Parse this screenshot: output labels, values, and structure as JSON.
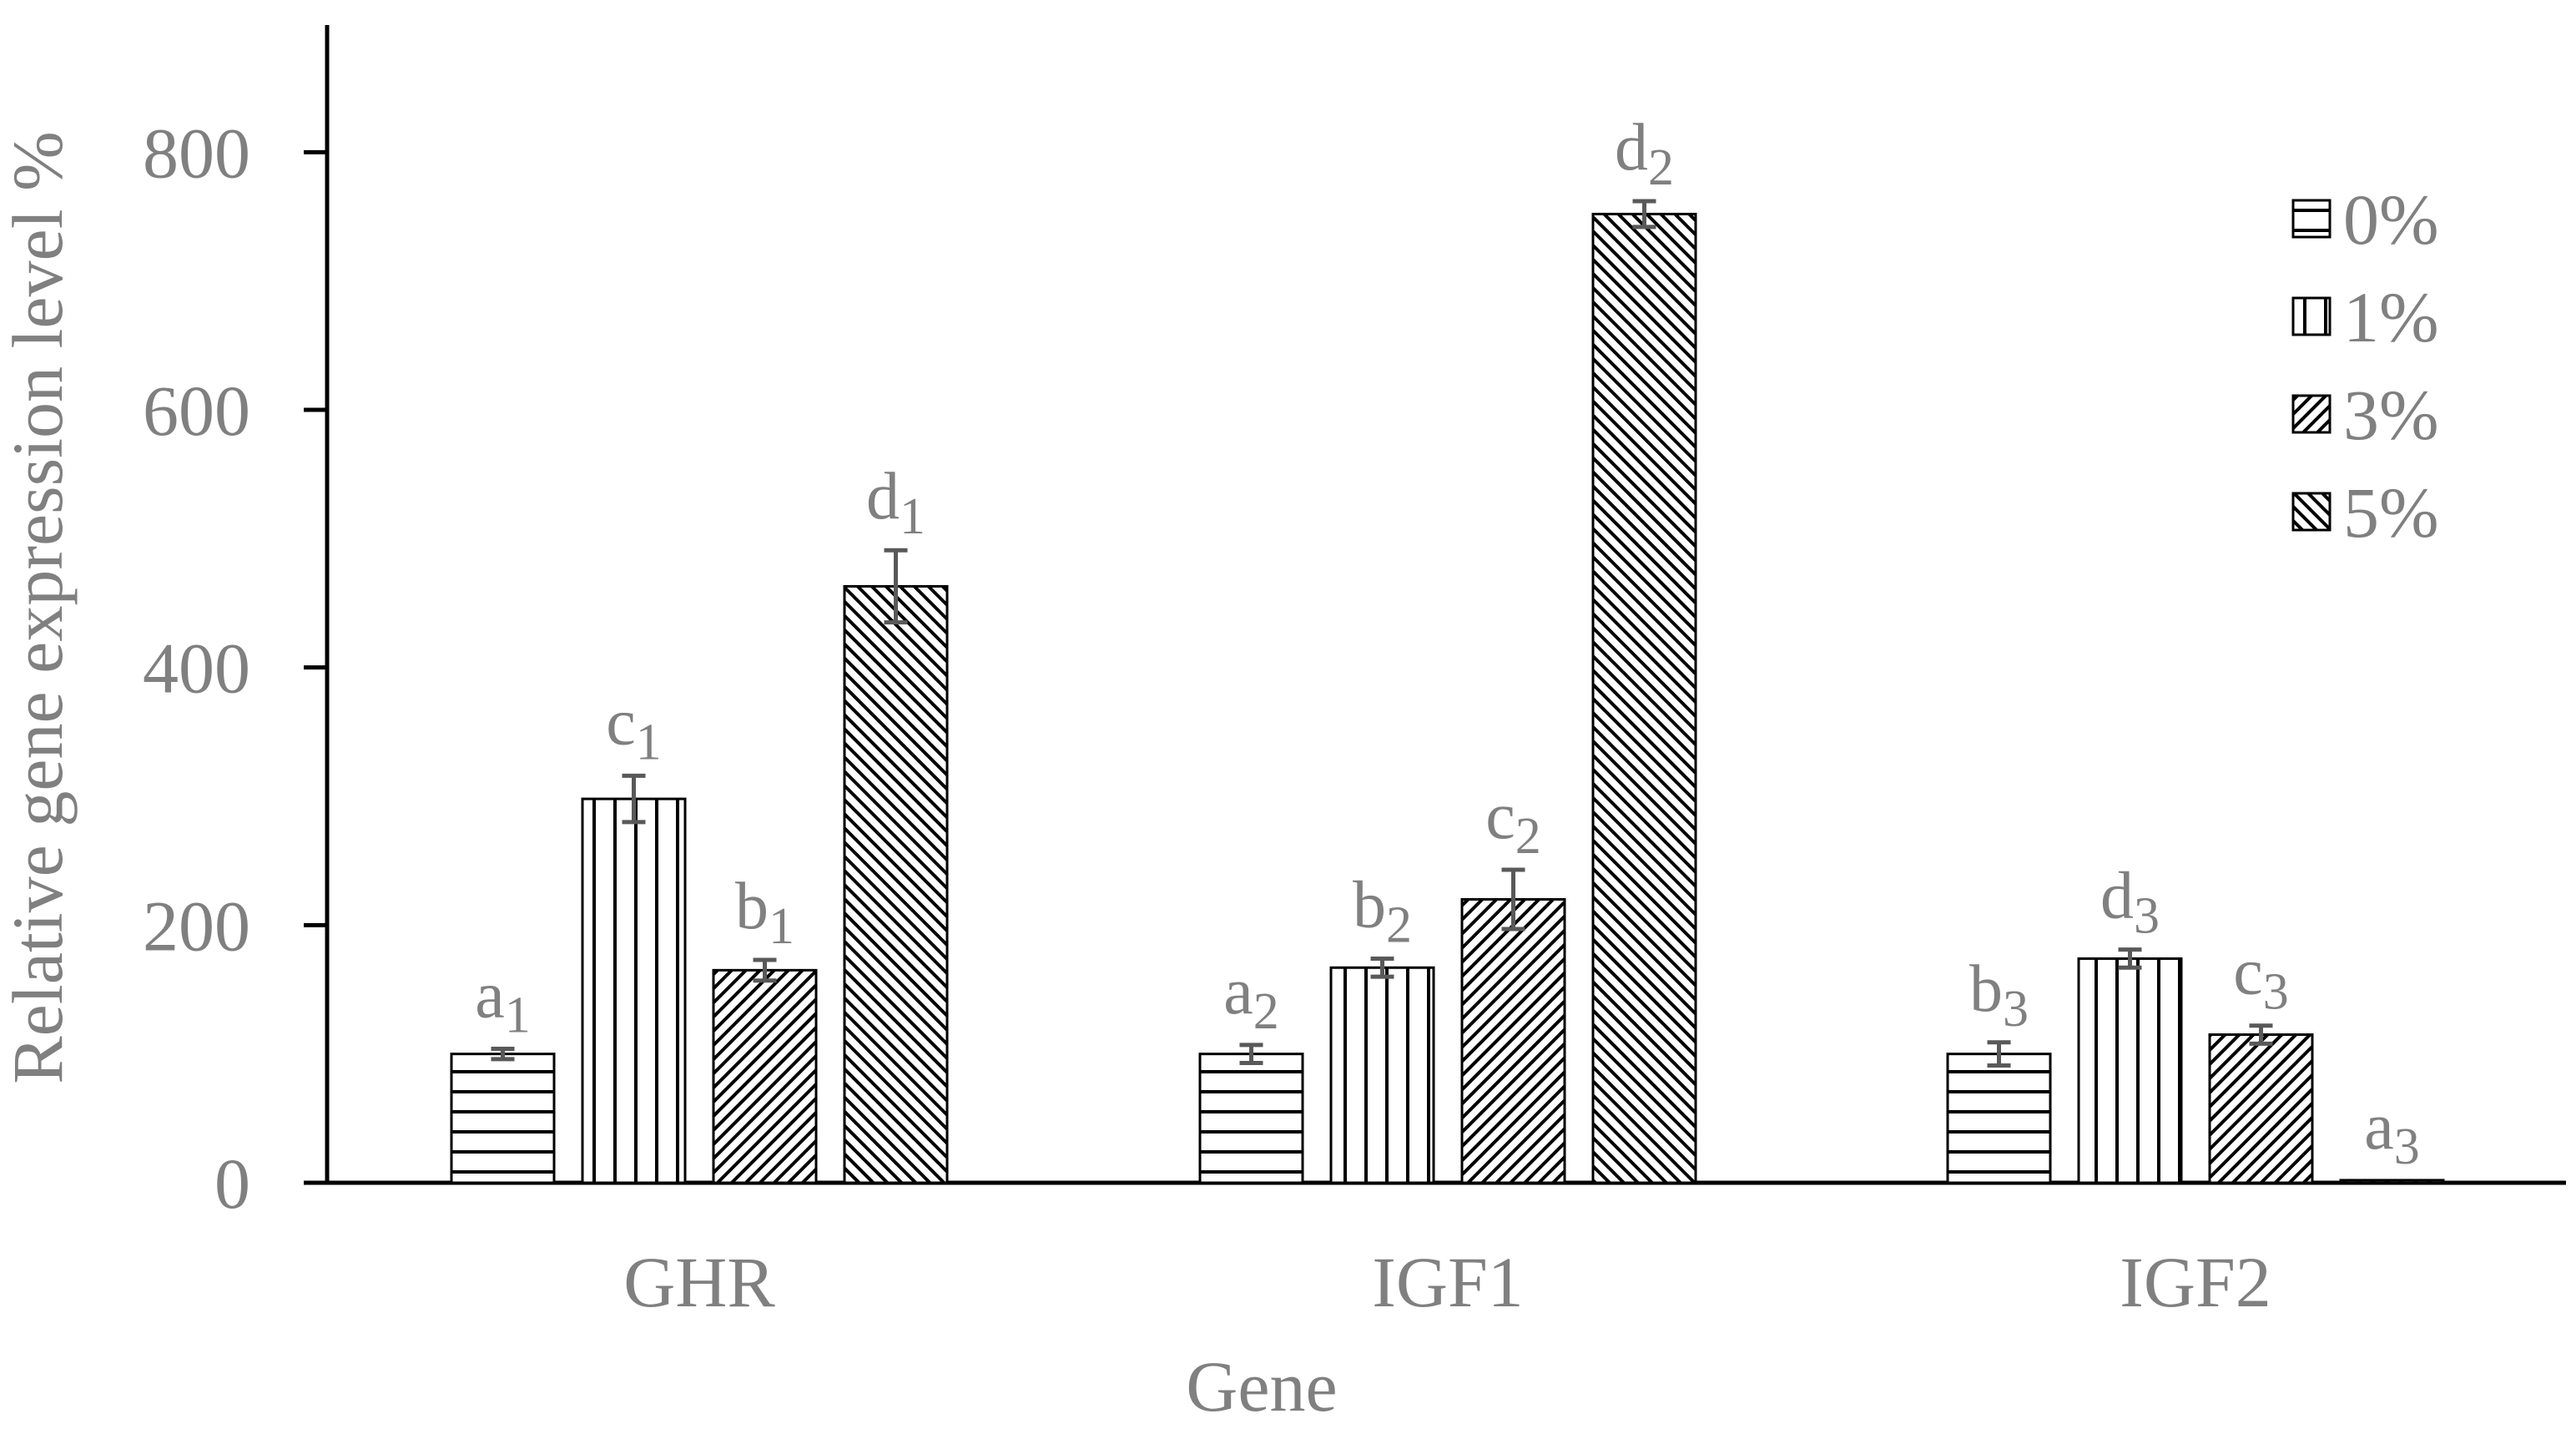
{
  "chart_data": {
    "type": "bar",
    "title": "",
    "xlabel": "Gene",
    "ylabel": "Relative gene expression level %",
    "ylim": [
      0,
      900
    ],
    "yticks": [
      0,
      200,
      400,
      600,
      800
    ],
    "ytick_labels": [
      "0",
      "200",
      "400",
      "600",
      "800"
    ],
    "grid": false,
    "legend_position": "top-right",
    "categories": [
      "GHR",
      "IGF1",
      "IGF2"
    ],
    "series": [
      {
        "name": "0%",
        "pattern": "horizontal-lines",
        "values": [
          100,
          100,
          100
        ],
        "errors": [
          4,
          7,
          9
        ],
        "letters": [
          [
            "a",
            "1"
          ],
          [
            "a",
            "2"
          ],
          [
            "b",
            "3"
          ]
        ]
      },
      {
        "name": "1%",
        "pattern": "vertical-lines",
        "values": [
          298,
          167,
          174
        ],
        "errors": [
          18,
          7,
          7
        ],
        "letters": [
          [
            "c",
            "1"
          ],
          [
            "b",
            "2"
          ],
          [
            "d",
            "3"
          ]
        ]
      },
      {
        "name": "3%",
        "pattern": "fine-diagonal",
        "values": [
          165,
          220,
          115
        ],
        "errors": [
          8,
          23,
          7
        ],
        "letters": [
          [
            "b",
            "1"
          ],
          [
            "c",
            "2"
          ],
          [
            "c",
            "3"
          ]
        ]
      },
      {
        "name": "5%",
        "pattern": "back-diagonal",
        "values": [
          463,
          752,
          2
        ],
        "errors": [
          28,
          10,
          0
        ],
        "letters": [
          [
            "d",
            "1"
          ],
          [
            "d",
            "2"
          ],
          [
            "a",
            "3"
          ]
        ]
      }
    ],
    "colors": {
      "axis": "#000000",
      "text": "#808080",
      "error_bar": "#595959",
      "bar_fill": "#ffffff",
      "pattern": "#000000"
    }
  }
}
